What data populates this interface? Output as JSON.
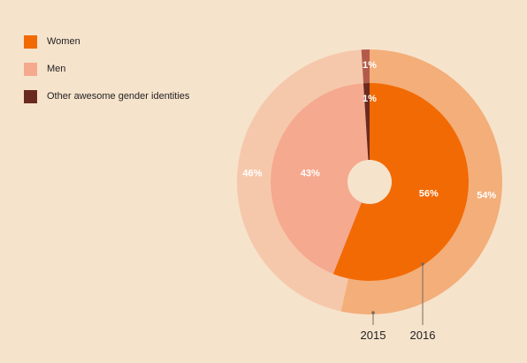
{
  "colors": {
    "background": "#f6e3cc",
    "leader": "#7a6a5c"
  },
  "legend": [
    {
      "label": "Women",
      "color": "#f26a04"
    },
    {
      "label": "Men",
      "color": "#f5a98e"
    },
    {
      "label": "Other awesome gender identities",
      "color": "#6b2a20"
    }
  ],
  "chart_data": {
    "type": "pie",
    "title": "",
    "legend_position": "top-left",
    "categories": [
      "Women",
      "Men",
      "Other awesome gender identities"
    ],
    "series": [
      {
        "name": "2015",
        "ring": "outer",
        "values": [
          54,
          46,
          1
        ],
        "labels": [
          "54%",
          "46%",
          "1%"
        ],
        "colors": [
          "#f3ae79",
          "#f6c8ab",
          "#b45a4a"
        ]
      },
      {
        "name": "2016",
        "ring": "inner",
        "values": [
          56,
          43,
          1
        ],
        "labels": [
          "56%",
          "43%",
          "1%"
        ],
        "colors": [
          "#f26a04",
          "#f5a98e",
          "#6b2a20"
        ]
      }
    ]
  }
}
